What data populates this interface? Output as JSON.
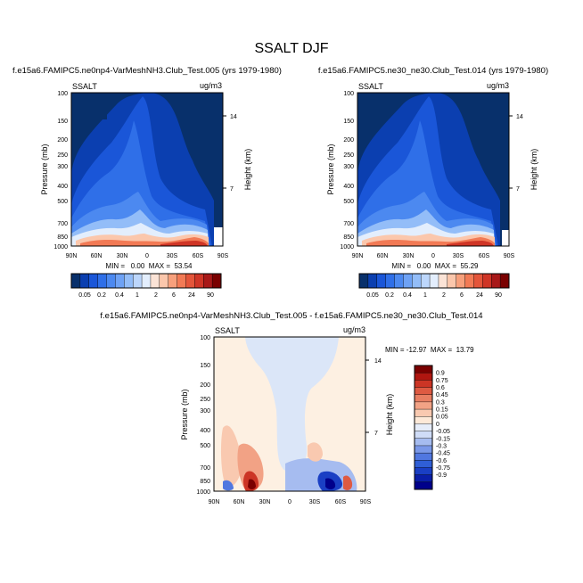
{
  "title": "SSALT DJF",
  "colors": {
    "seq": [
      "#08306b",
      "#0b3fb0",
      "#1a56d8",
      "#2f6fe8",
      "#4c89f0",
      "#6ea2f5",
      "#93bdf8",
      "#bcd6fb",
      "#e3eefd",
      "#fbe3d6",
      "#fbc7ac",
      "#f7a07c",
      "#f27a55",
      "#e4553a",
      "#cf3526",
      "#a81818",
      "#7a0000"
    ],
    "div": [
      "#00008b",
      "#0a1ea8",
      "#1a3fc4",
      "#2f5fd6",
      "#5077e0",
      "#7a98e8",
      "#a6bcf0",
      "#cfdcf7",
      "#e6edfa",
      "#fde9d8",
      "#f9c9b0",
      "#f2a285",
      "#e87e62",
      "#de5a42",
      "#cc3525",
      "#b01610",
      "#7a0000"
    ]
  },
  "chart_data": [
    {
      "type": "heatmap",
      "id": "top-left",
      "title": "f.e15a6.FAMIPC5.ne0np4-VarMeshNH3.Club_Test.005 (yrs 1979-1980)",
      "left_label": "SSALT",
      "right_label": "ug/m3",
      "ylabel": "Pressure (mb)",
      "ylabel_right": "Height (km)",
      "x_ticks": [
        "90N",
        "60N",
        "30N",
        "0",
        "30S",
        "60S",
        "90S"
      ],
      "y_ticks": [
        "100",
        "150",
        "200",
        "250",
        "300",
        "400",
        "500",
        "700",
        "850",
        "1000"
      ],
      "y_ticks_right": [
        "14",
        "7"
      ],
      "ylim": [
        1000,
        100
      ],
      "stats": "MIN =   0.00  MAX =  53.54",
      "colorbar": {
        "orientation": "horizontal",
        "labels": [
          "0.05",
          "0.2",
          "0.4",
          "1",
          "2",
          "6",
          "24",
          "90"
        ]
      }
    },
    {
      "type": "heatmap",
      "id": "top-right",
      "title": "f.e15a6.FAMIPC5.ne30_ne30.Club_Test.014 (yrs 1979-1980)",
      "left_label": "SSALT",
      "right_label": "ug/m3",
      "ylabel": "Pressure (mb)",
      "ylabel_right": "Height (km)",
      "x_ticks": [
        "90N",
        "60N",
        "30N",
        "0",
        "30S",
        "60S",
        "90S"
      ],
      "y_ticks": [
        "100",
        "150",
        "200",
        "250",
        "300",
        "400",
        "500",
        "700",
        "850",
        "1000"
      ],
      "y_ticks_right": [
        "14",
        "7"
      ],
      "ylim": [
        1000,
        100
      ],
      "stats": "MIN =   0.00  MAX =  55.29",
      "colorbar": {
        "orientation": "horizontal",
        "labels": [
          "0.05",
          "0.2",
          "0.4",
          "1",
          "2",
          "6",
          "24",
          "90"
        ]
      }
    },
    {
      "type": "heatmap",
      "id": "difference",
      "title": "f.e15a6.FAMIPC5.ne0np4-VarMeshNH3.Club_Test.005 - f.e15a6.FAMIPC5.ne30_ne30.Club_Test.014",
      "left_label": "SSALT",
      "right_label": "ug/m3",
      "ylabel": "Pressure (mb)",
      "ylabel_right": "Height (km)",
      "x_ticks": [
        "90N",
        "60N",
        "30N",
        "0",
        "30S",
        "60S",
        "90S"
      ],
      "y_ticks": [
        "100",
        "150",
        "200",
        "250",
        "300",
        "400",
        "500",
        "700",
        "850",
        "1000"
      ],
      "y_ticks_right": [
        "14",
        "7"
      ],
      "ylim": [
        1000,
        100
      ],
      "stats": "MIN = -12.97  MAX =  13.79",
      "colorbar": {
        "orientation": "vertical",
        "labels": [
          "0.9",
          "0.75",
          "0.6",
          "0.45",
          "0.3",
          "0.15",
          "0.05",
          "0",
          "-0.05",
          "-0.15",
          "-0.3",
          "-0.45",
          "-0.6",
          "-0.75",
          "-0.9"
        ]
      }
    }
  ]
}
